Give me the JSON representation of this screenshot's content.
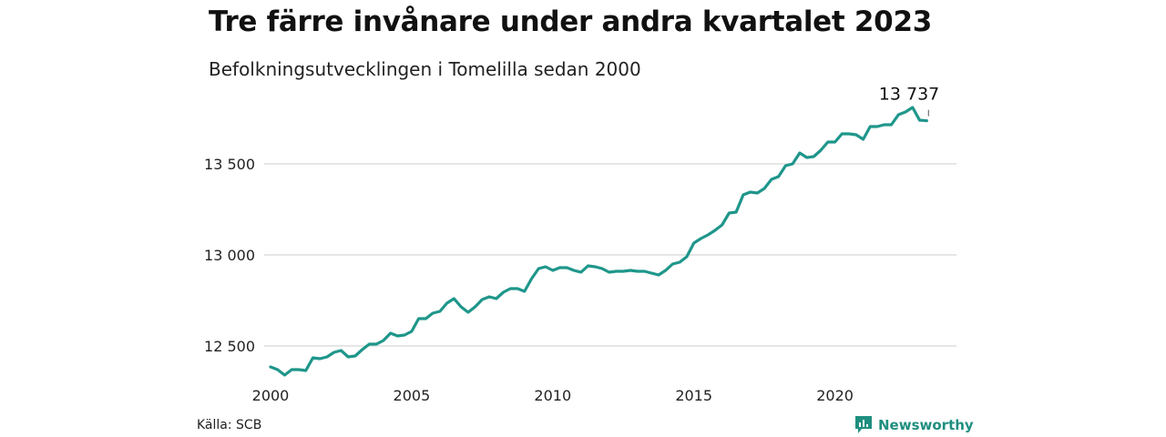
{
  "title": "Tre färre invånare under andra kvartalet 2023",
  "subtitle": "Befolkningsutvecklingen i Tomelilla sedan 2000",
  "source": "Källa: SCB",
  "brand": "Newsworthy",
  "colors": {
    "line": "#1f968b",
    "grid": "#dddddd",
    "brand": "#1f8f80"
  },
  "chart_data": {
    "type": "line",
    "xlabel": "",
    "ylabel": "",
    "x_ticks": [
      "2000",
      "2005",
      "2010",
      "2015",
      "2020"
    ],
    "y_ticks": [
      {
        "value": 12500,
        "label": "12 500"
      },
      {
        "value": 13000,
        "label": "13 000"
      },
      {
        "value": 13500,
        "label": "13 500"
      }
    ],
    "ylim": [
      12300,
      13850
    ],
    "xlim": [
      2000.0,
      2023.5
    ],
    "grid": true,
    "annotation": {
      "label": "13 737"
    },
    "series": [
      {
        "name": "",
        "x": [
          2000.0,
          2000.25,
          2000.5,
          2000.75,
          2001.0,
          2001.25,
          2001.5,
          2001.75,
          2002.0,
          2002.25,
          2002.5,
          2002.75,
          2003.0,
          2003.25,
          2003.5,
          2003.75,
          2004.0,
          2004.25,
          2004.5,
          2004.75,
          2005.0,
          2005.25,
          2005.5,
          2005.75,
          2006.0,
          2006.25,
          2006.5,
          2006.75,
          2007.0,
          2007.25,
          2007.5,
          2007.75,
          2008.0,
          2008.25,
          2008.5,
          2008.75,
          2009.0,
          2009.25,
          2009.5,
          2009.75,
          2010.0,
          2010.25,
          2010.5,
          2010.75,
          2011.0,
          2011.25,
          2011.5,
          2011.75,
          2012.0,
          2012.25,
          2012.5,
          2012.75,
          2013.0,
          2013.25,
          2013.5,
          2013.75,
          2014.0,
          2014.25,
          2014.5,
          2014.75,
          2015.0,
          2015.25,
          2015.5,
          2015.75,
          2016.0,
          2016.25,
          2016.5,
          2016.75,
          2017.0,
          2017.25,
          2017.5,
          2017.75,
          2018.0,
          2018.25,
          2018.5,
          2018.75,
          2019.0,
          2019.25,
          2019.5,
          2019.75,
          2020.0,
          2020.25,
          2020.5,
          2020.75,
          2021.0,
          2021.25,
          2021.5,
          2021.75,
          2022.0,
          2022.25,
          2022.5,
          2022.75,
          2023.0,
          2023.25
        ],
        "values": [
          12385,
          12370,
          12340,
          12370,
          12370,
          12365,
          12435,
          12430,
          12440,
          12465,
          12475,
          12440,
          12445,
          12480,
          12510,
          12510,
          12530,
          12570,
          12555,
          12560,
          12580,
          12650,
          12650,
          12680,
          12690,
          12735,
          12760,
          12715,
          12685,
          12715,
          12755,
          12770,
          12760,
          12795,
          12815,
          12815,
          12800,
          12870,
          12925,
          12935,
          12915,
          12930,
          12930,
          12915,
          12905,
          12940,
          12935,
          12925,
          12905,
          12910,
          12910,
          12915,
          12910,
          12910,
          12900,
          12890,
          12915,
          12950,
          12960,
          12990,
          13065,
          13090,
          13110,
          13135,
          13165,
          13230,
          13235,
          13330,
          13345,
          13340,
          13365,
          13415,
          13430,
          13490,
          13500,
          13560,
          13535,
          13540,
          13575,
          13620,
          13620,
          13665,
          13665,
          13660,
          13635,
          13705,
          13705,
          13715,
          13715,
          13770,
          13785,
          13810,
          13740,
          13737
        ]
      }
    ]
  }
}
